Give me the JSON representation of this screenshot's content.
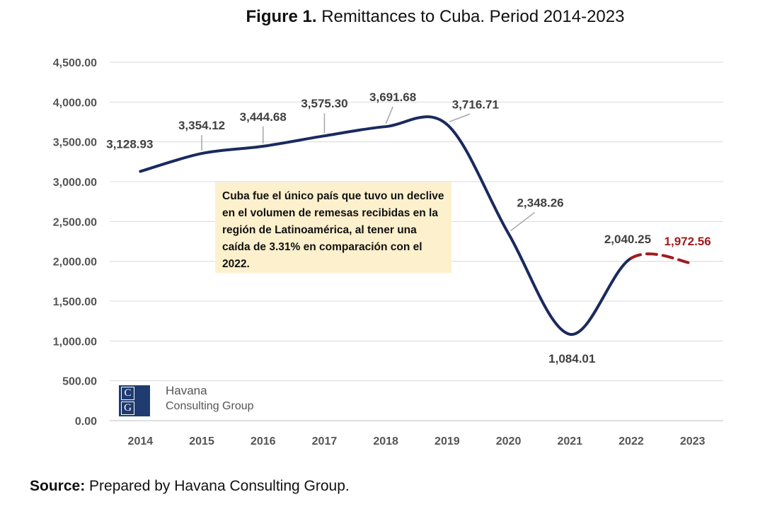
{
  "header": {
    "title_bold": "Figure 1.",
    "title_rest": " Remittances to Cuba. Period 2014-2023"
  },
  "annotation": {
    "text": "Cuba fue el único país que tuvo un declive en el volumen de remesas recibidas en la región de Latinoamérica, al tener una caída de 3.31% en comparación con el 2022."
  },
  "logo": {
    "initials_top": "C",
    "initials_bottom": "G",
    "name": "Havana",
    "subtitle": "Consulting Group",
    "color": "#1f3b6f"
  },
  "footer": {
    "source_bold": "Source:",
    "source_rest": " Prepared by Havana Consulting Group."
  },
  "chart_data": {
    "type": "line",
    "title": "",
    "xlabel": "",
    "ylabel": "",
    "categories": [
      "2014",
      "2015",
      "2016",
      "2017",
      "2018",
      "2019",
      "2020",
      "2021",
      "2022",
      "2023"
    ],
    "ylim": [
      0,
      4500
    ],
    "yticks": [
      0,
      500,
      1000,
      1500,
      2000,
      2500,
      3000,
      3500,
      4000,
      4500
    ],
    "ytick_labels": [
      "0.00",
      "500.00",
      "1,000.00",
      "1,500.00",
      "2,000.00",
      "2,500.00",
      "3,000.00",
      "3,500.00",
      "4,000.00",
      "4,500.00"
    ],
    "grid": true,
    "series": [
      {
        "values": [
          3128.93,
          3354.12,
          3444.68,
          3575.3,
          3691.68,
          3716.71,
          2348.26,
          1084.01,
          2040.25,
          1972.56
        ],
        "labels": [
          "3,128.93",
          "3,354.12",
          "3,444.68",
          "3,575.30",
          "3,691.68",
          "3,716.71",
          "2,348.26",
          "1,084.01",
          "2,040.25",
          "1,972.56"
        ],
        "color": "#1a2a5e",
        "highlight_color": "#a01c1c",
        "projected_last_segment": true
      }
    ]
  }
}
